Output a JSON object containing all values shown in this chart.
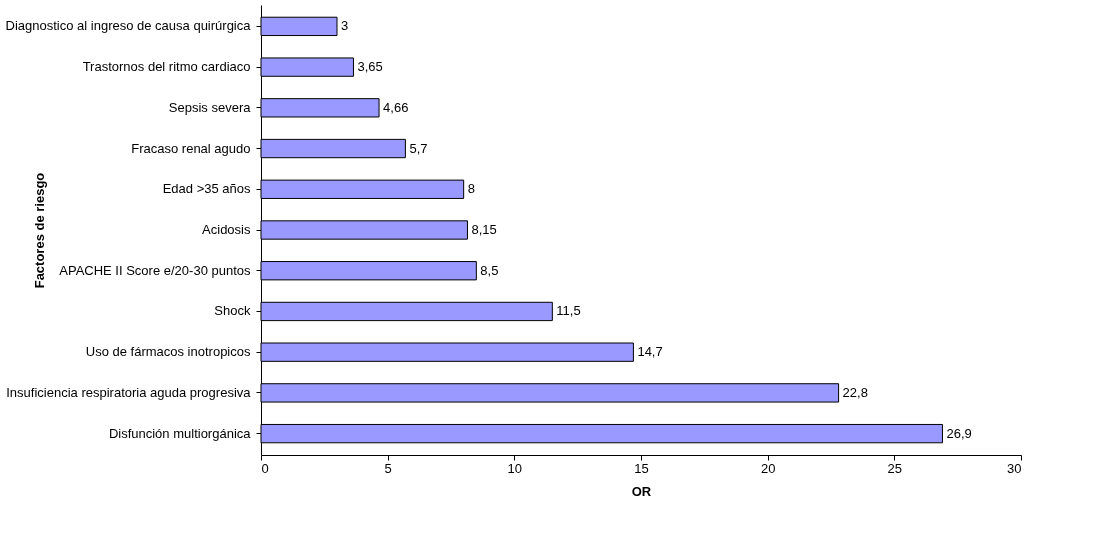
{
  "chart_data": {
    "type": "bar",
    "orientation": "horizontal",
    "xlabel": "OR",
    "ylabel": "Factores de riesgo",
    "categories": [
      "Diagnostico al ingreso de causa quirúrgica",
      "Trastornos del ritmo cardiaco",
      "Sepsis severa",
      "Fracaso renal agudo",
      "Edad >35 años",
      "Acidosis",
      "APACHE II Score e/20-30 puntos",
      "Shock",
      "Uso de fármacos inotropicos",
      "Insuficiencia respiratoria aguda progresiva",
      "Disfunción multiorgánica"
    ],
    "values": [
      3,
      3.65,
      4.66,
      5.7,
      8,
      8.15,
      8.5,
      11.5,
      14.7,
      22.8,
      26.9
    ],
    "value_labels": [
      "3",
      "3,65",
      "4,66",
      "5,7",
      "8",
      "8,15",
      "8,5",
      "11,5",
      "14,7",
      "22,8",
      "26,9"
    ],
    "color": "#9999ff",
    "xlim": [
      0,
      30
    ],
    "xticks": [
      0,
      5,
      10,
      15,
      20,
      25,
      30
    ],
    "grid": false
  }
}
